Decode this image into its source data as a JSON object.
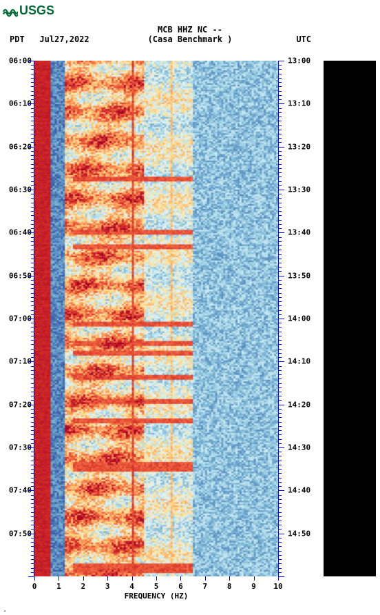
{
  "logo": {
    "text": "USGS",
    "color": "#046a38"
  },
  "header": {
    "title": "MCB HHZ NC --",
    "subtitle": "(Casa Benchmark )",
    "left_tz": "PDT",
    "date": "Jul27,2022",
    "right_tz": "UTC"
  },
  "spectrogram": {
    "type": "heatmap",
    "x_label": "FREQUENCY (HZ)",
    "xlim": [
      0,
      10
    ],
    "x_ticks": [
      0,
      1,
      2,
      3,
      4,
      5,
      6,
      7,
      8,
      9,
      10
    ],
    "left_time_start": "06:00",
    "right_time_start": "13:00",
    "time_step_min": 10,
    "left_ticks": [
      "06:00",
      "06:10",
      "06:20",
      "06:30",
      "06:40",
      "06:50",
      "07:00",
      "07:10",
      "07:20",
      "07:30",
      "07:40",
      "07:50"
    ],
    "right_ticks": [
      "13:00",
      "13:10",
      "13:20",
      "13:30",
      "13:40",
      "13:50",
      "14:00",
      "14:10",
      "14:20",
      "14:30",
      "14:40",
      "14:50"
    ],
    "minor_per_major": 10,
    "axis_color": "#0000ff",
    "colormap": [
      "#a50026",
      "#d73027",
      "#f46d43",
      "#fdae61",
      "#fee090",
      "#e0f3f8",
      "#abd9e9",
      "#74add1",
      "#4575b4",
      "#313695"
    ],
    "background_color": "#ffffff",
    "nx": 120,
    "ny": 320,
    "line_at_hz": 4.0
  },
  "waveform": {
    "background": "#000000",
    "trace_color": "#ffffff"
  },
  "footer": "."
}
